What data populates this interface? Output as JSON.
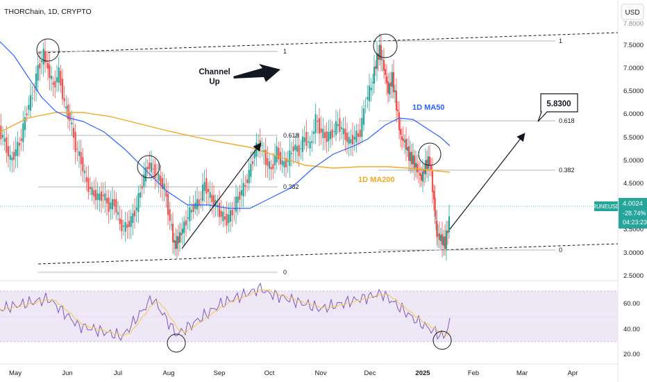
{
  "header": {
    "title": "THORChain, 1D, CRYPTO",
    "currency": "USD"
  },
  "price_scale": {
    "ticks": [
      "7.5000",
      "7.0000",
      "6.5000",
      "6.0000",
      "5.5000",
      "5.0000",
      "4.5000",
      "3.5000",
      "3.0000",
      "2.5000"
    ],
    "tick_values": [
      7.5,
      7.0,
      6.5,
      6.0,
      5.5,
      5.0,
      4.5,
      3.5,
      3.0,
      2.5
    ],
    "top_partial": "7.8000"
  },
  "rsi_scale": {
    "ticks": [
      "60.00",
      "40.00",
      "20.00"
    ],
    "tick_values": [
      60,
      40,
      20
    ]
  },
  "time_axis": {
    "labels": [
      "May",
      "Jun",
      "Jul",
      "Aug",
      "Sep",
      "Oct",
      "Nov",
      "Dec",
      "2025",
      "Feb",
      "Mar",
      "Apr"
    ],
    "bold_label": "2025"
  },
  "current_price": {
    "symbol": "RUNEUSD",
    "price": "4.0024",
    "change": "-28.74%",
    "countdown": "04:23:23",
    "color": "#26a69a"
  },
  "annotations": {
    "channel_label_line1": "Channel",
    "channel_label_line2": "Up",
    "ma50_label": "1D MA50",
    "ma200_label": "1D MA200",
    "target_label": "5.8300",
    "fib_left": [
      "1",
      "0.618",
      "0.382",
      "0"
    ],
    "fib_right": [
      "1",
      "0.618",
      "0.382",
      "0"
    ]
  },
  "colors": {
    "up": "#26a69a",
    "down": "#ef5350",
    "ma50": "#2962ff",
    "ma200": "#f5a623",
    "rsi": "#7e57c2",
    "rsi_ma": "#f7c948",
    "rsi_band": "#ede7f6"
  },
  "chart_data": {
    "type": "candlestick",
    "title": "THORChain, 1D, CRYPTO",
    "ylabel": "USD",
    "ylim": [
      2.3,
      7.9
    ],
    "series": [
      {
        "name": "RUNEUSD",
        "last": 4.0024
      },
      {
        "name": "1D MA50",
        "points": [
          [
            "May",
            7.6
          ],
          [
            "mid-May",
            7.0
          ],
          [
            "Jun",
            6.0
          ],
          [
            "Jul",
            5.2
          ],
          [
            "Aug",
            4.3
          ],
          [
            "Sep",
            4.05
          ],
          [
            "Oct",
            4.3
          ],
          [
            "Nov",
            4.8
          ],
          [
            "Dec",
            5.6
          ],
          [
            "mid-Dec",
            5.95
          ],
          [
            "2025",
            5.6
          ],
          [
            "mid-Jan",
            5.3
          ]
        ]
      },
      {
        "name": "1D MA200",
        "points": [
          [
            "May",
            5.6
          ],
          [
            "Jun",
            6.0
          ],
          [
            "Jul",
            5.9
          ],
          [
            "Aug",
            5.7
          ],
          [
            "Sep",
            5.5
          ],
          [
            "Oct",
            5.2
          ],
          [
            "Nov",
            4.9
          ],
          [
            "Dec",
            4.8
          ],
          [
            "2025",
            4.78
          ],
          [
            "mid-Jan",
            4.72
          ]
        ]
      },
      {
        "name": "RSI",
        "ylim": [
          15,
          78
        ],
        "points": [
          [
            "May",
            50
          ],
          [
            "late May",
            67
          ],
          [
            "Jun",
            46
          ],
          [
            "Jul",
            36
          ],
          [
            "Aug",
            30
          ],
          [
            "Sep",
            50
          ],
          [
            "Oct",
            70
          ],
          [
            "Nov",
            48
          ],
          [
            "Dec",
            70
          ],
          [
            "mid-Dec",
            62
          ],
          [
            "2025",
            40
          ],
          [
            "mid-Jan",
            27
          ],
          [
            "Jan 15",
            45
          ]
        ]
      }
    ],
    "levels": [
      {
        "label": "1",
        "value": 7.56
      },
      {
        "label": "0.618",
        "value": 5.83
      },
      {
        "label": "0.382",
        "value": 4.78
      },
      {
        "label": "0",
        "value": 3.06
      }
    ],
    "target": 5.83
  }
}
